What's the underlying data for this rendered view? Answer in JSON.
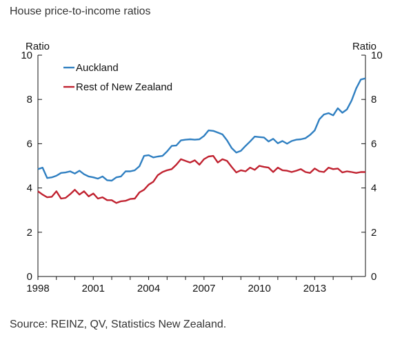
{
  "title": "House price-to-income ratios",
  "source": "Source: REINZ, QV, Statistics New Zealand.",
  "chart_data": {
    "type": "line",
    "ylabel_left": "Ratio",
    "ylabel_right": "Ratio",
    "xlim": [
      1998,
      2015.75
    ],
    "ylim": [
      0,
      10
    ],
    "yticks": [
      0,
      2,
      4,
      6,
      8,
      10
    ],
    "xticks": [
      1998,
      2001,
      2004,
      2007,
      2010,
      2013
    ],
    "grid": false,
    "legend_position": "top-left",
    "series": [
      {
        "name": "Auckland",
        "color": "#2f7fc1",
        "x": [
          1998.0,
          1998.25,
          1998.5,
          1998.75,
          1999.0,
          1999.25,
          1999.5,
          1999.75,
          2000.0,
          2000.25,
          2000.5,
          2000.75,
          2001.0,
          2001.25,
          2001.5,
          2001.75,
          2002.0,
          2002.25,
          2002.5,
          2002.75,
          2003.0,
          2003.25,
          2003.5,
          2003.75,
          2004.0,
          2004.25,
          2004.5,
          2004.75,
          2005.0,
          2005.25,
          2005.5,
          2005.75,
          2006.0,
          2006.25,
          2006.5,
          2006.75,
          2007.0,
          2007.25,
          2007.5,
          2007.75,
          2008.0,
          2008.25,
          2008.5,
          2008.75,
          2009.0,
          2009.25,
          2009.5,
          2009.75,
          2010.0,
          2010.25,
          2010.5,
          2010.75,
          2011.0,
          2011.25,
          2011.5,
          2011.75,
          2012.0,
          2012.25,
          2012.5,
          2012.75,
          2013.0,
          2013.25,
          2013.5,
          2013.75,
          2014.0,
          2014.25,
          2014.5,
          2014.75,
          2015.0,
          2015.25,
          2015.5,
          2015.75
        ],
        "values": [
          4.85,
          4.92,
          4.45,
          4.48,
          4.55,
          4.68,
          4.7,
          4.75,
          4.65,
          4.78,
          4.62,
          4.52,
          4.48,
          4.42,
          4.52,
          4.35,
          4.33,
          4.48,
          4.52,
          4.75,
          4.75,
          4.8,
          4.98,
          5.45,
          5.48,
          5.38,
          5.42,
          5.45,
          5.65,
          5.9,
          5.92,
          6.15,
          6.18,
          6.2,
          6.18,
          6.2,
          6.35,
          6.6,
          6.58,
          6.5,
          6.42,
          6.15,
          5.8,
          5.6,
          5.68,
          5.9,
          6.1,
          6.32,
          6.3,
          6.28,
          6.1,
          6.22,
          6.02,
          6.12,
          6.0,
          6.12,
          6.18,
          6.2,
          6.25,
          6.4,
          6.6,
          7.1,
          7.32,
          7.38,
          7.28,
          7.6,
          7.4,
          7.55,
          7.95,
          8.5,
          8.9,
          8.95
        ]
      },
      {
        "name": "Rest of New Zealand",
        "color": "#c0212f",
        "x": [
          1998.0,
          1998.25,
          1998.5,
          1998.75,
          1999.0,
          1999.25,
          1999.5,
          1999.75,
          2000.0,
          2000.25,
          2000.5,
          2000.75,
          2001.0,
          2001.25,
          2001.5,
          2001.75,
          2002.0,
          2002.25,
          2002.5,
          2002.75,
          2003.0,
          2003.25,
          2003.5,
          2003.75,
          2004.0,
          2004.25,
          2004.5,
          2004.75,
          2005.0,
          2005.25,
          2005.5,
          2005.75,
          2006.0,
          2006.25,
          2006.5,
          2006.75,
          2007.0,
          2007.25,
          2007.5,
          2007.75,
          2008.0,
          2008.25,
          2008.5,
          2008.75,
          2009.0,
          2009.25,
          2009.5,
          2009.75,
          2010.0,
          2010.25,
          2010.5,
          2010.75,
          2011.0,
          2011.25,
          2011.5,
          2011.75,
          2012.0,
          2012.25,
          2012.5,
          2012.75,
          2013.0,
          2013.25,
          2013.5,
          2013.75,
          2014.0,
          2014.25,
          2014.5,
          2014.75,
          2015.0,
          2015.25,
          2015.5,
          2015.75
        ],
        "values": [
          3.85,
          3.7,
          3.58,
          3.6,
          3.85,
          3.52,
          3.55,
          3.72,
          3.92,
          3.7,
          3.85,
          3.62,
          3.75,
          3.52,
          3.58,
          3.45,
          3.45,
          3.32,
          3.4,
          3.42,
          3.5,
          3.52,
          3.8,
          3.92,
          4.15,
          4.28,
          4.58,
          4.72,
          4.8,
          4.85,
          5.05,
          5.3,
          5.22,
          5.15,
          5.25,
          5.05,
          5.3,
          5.42,
          5.45,
          5.15,
          5.3,
          5.22,
          4.95,
          4.7,
          4.8,
          4.75,
          4.92,
          4.82,
          5.0,
          4.95,
          4.92,
          4.72,
          4.92,
          4.8,
          4.78,
          4.72,
          4.78,
          4.85,
          4.72,
          4.68,
          4.88,
          4.75,
          4.72,
          4.92,
          4.85,
          4.88,
          4.7,
          4.75,
          4.72,
          4.68,
          4.72,
          4.72
        ]
      }
    ]
  }
}
